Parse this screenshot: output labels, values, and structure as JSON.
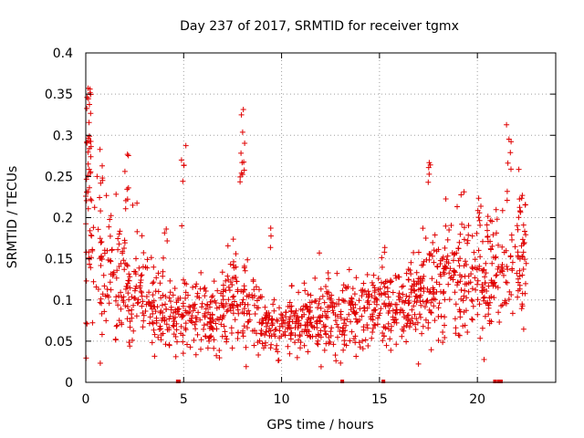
{
  "chart_data": {
    "type": "scatter",
    "title": "Day 237 of 2017, SRMTID for receiver tgmx",
    "xlabel": "GPS time / hours",
    "ylabel": "SRMTID / TECUs",
    "xlim": [
      0,
      24
    ],
    "ylim": [
      0,
      0.4
    ],
    "grid": true,
    "marker": "plus",
    "color": "#e00000",
    "x_ticks": [
      0,
      5,
      10,
      15,
      20
    ],
    "x_tick_labels": [
      "0",
      "5",
      "10",
      "15",
      "20"
    ],
    "y_ticks": [
      0,
      0.05,
      0.1,
      0.15,
      0.2,
      0.25,
      0.3,
      0.35,
      0.4
    ],
    "y_tick_labels": [
      "0",
      "0.05",
      "0.1",
      "0.15",
      "0.2",
      "0.25",
      "0.3",
      "0.35",
      "0.4"
    ],
    "trend": [
      {
        "x": 0.0,
        "y": 0.17
      },
      {
        "x": 0.3,
        "y": 0.16
      },
      {
        "x": 0.8,
        "y": 0.14
      },
      {
        "x": 1.5,
        "y": 0.13
      },
      {
        "x": 2.5,
        "y": 0.11
      },
      {
        "x": 3.5,
        "y": 0.09
      },
      {
        "x": 4.5,
        "y": 0.085
      },
      {
        "x": 5.5,
        "y": 0.09
      },
      {
        "x": 6.5,
        "y": 0.075
      },
      {
        "x": 7.5,
        "y": 0.11
      },
      {
        "x": 8.2,
        "y": 0.1
      },
      {
        "x": 9.0,
        "y": 0.07
      },
      {
        "x": 10.0,
        "y": 0.065
      },
      {
        "x": 11.0,
        "y": 0.075
      },
      {
        "x": 12.0,
        "y": 0.08
      },
      {
        "x": 13.0,
        "y": 0.075
      },
      {
        "x": 14.0,
        "y": 0.085
      },
      {
        "x": 15.0,
        "y": 0.1
      },
      {
        "x": 16.0,
        "y": 0.09
      },
      {
        "x": 17.0,
        "y": 0.11
      },
      {
        "x": 18.0,
        "y": 0.12
      },
      {
        "x": 19.0,
        "y": 0.13
      },
      {
        "x": 20.0,
        "y": 0.13
      },
      {
        "x": 20.5,
        "y": 0.12
      },
      {
        "x": 21.5,
        "y": 0.15
      },
      {
        "x": 22.5,
        "y": 0.16
      }
    ],
    "spikes": [
      {
        "x": 0.15,
        "low": 0.22,
        "high": 0.36,
        "count": 30
      },
      {
        "x": 0.8,
        "low": 0.24,
        "high": 0.29,
        "count": 5
      },
      {
        "x": 2.1,
        "low": 0.2,
        "high": 0.28,
        "count": 8
      },
      {
        "x": 4.05,
        "low": 0.17,
        "high": 0.19,
        "count": 3
      },
      {
        "x": 5.0,
        "low": 0.19,
        "high": 0.29,
        "count": 6
      },
      {
        "x": 8.0,
        "low": 0.24,
        "high": 0.35,
        "count": 12
      },
      {
        "x": 9.4,
        "low": 0.15,
        "high": 0.19,
        "count": 3
      },
      {
        "x": 17.6,
        "low": 0.24,
        "high": 0.28,
        "count": 5
      },
      {
        "x": 20.1,
        "low": 0.19,
        "high": 0.23,
        "count": 5
      },
      {
        "x": 20.6,
        "low": 0.18,
        "high": 0.22,
        "count": 4
      },
      {
        "x": 21.6,
        "low": 0.25,
        "high": 0.33,
        "count": 6
      },
      {
        "x": 22.2,
        "low": 0.2,
        "high": 0.26,
        "count": 6
      }
    ],
    "zero_points": [
      4.7,
      4.75,
      13.1,
      15.2,
      20.9,
      21.1,
      21.2
    ],
    "n_scatter_points": 1400
  }
}
